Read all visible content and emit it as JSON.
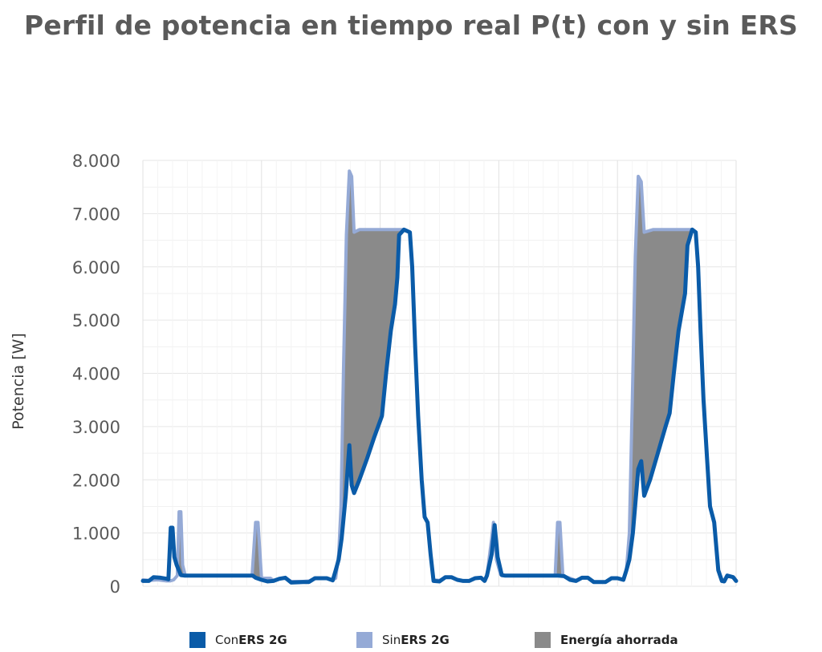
{
  "chart_data": {
    "type": "area",
    "title": "Perfil de potencia en tiempo real P(t) con y sin ERS",
    "ylabel": "Potencia [W]",
    "xlabel": "",
    "ylim": [
      0,
      8000
    ],
    "yticks": [
      "0",
      "1.000",
      "2.000",
      "3.000",
      "4.000",
      "5.000",
      "6.000",
      "7.000",
      "8.000"
    ],
    "grid": true,
    "legend_position": "bottom",
    "x_note": "time index 0-100 (no x tick labels shown)",
    "series": [
      {
        "name": "Con ERS 2G",
        "color": "#0a5ba8",
        "points": [
          [
            0,
            100
          ],
          [
            1,
            100
          ],
          [
            1.8,
            170
          ],
          [
            3,
            160
          ],
          [
            4,
            140
          ],
          [
            4.3,
            130
          ],
          [
            4.7,
            1100
          ],
          [
            5,
            1100
          ],
          [
            5.3,
            550
          ],
          [
            5.7,
            400
          ],
          [
            6.4,
            210
          ],
          [
            7,
            200
          ],
          [
            10,
            200
          ],
          [
            13,
            200
          ],
          [
            17,
            200
          ],
          [
            18.5,
            200
          ],
          [
            19,
            160
          ],
          [
            20,
            120
          ],
          [
            21,
            90
          ],
          [
            22,
            100
          ],
          [
            23,
            140
          ],
          [
            24,
            160
          ],
          [
            25,
            70
          ],
          [
            27,
            80
          ],
          [
            28,
            80
          ],
          [
            29,
            150
          ],
          [
            31,
            150
          ],
          [
            32,
            110
          ],
          [
            32.5,
            300
          ],
          [
            33,
            500
          ],
          [
            33.5,
            900
          ],
          [
            34.2,
            1700
          ],
          [
            34.8,
            2650
          ],
          [
            35.2,
            1900
          ],
          [
            35.6,
            1750
          ],
          [
            36.5,
            2000
          ],
          [
            37.8,
            2400
          ],
          [
            39,
            2800
          ],
          [
            40.3,
            3200
          ],
          [
            41,
            4000
          ],
          [
            41.8,
            4800
          ],
          [
            42.5,
            5300
          ],
          [
            42.9,
            5800
          ],
          [
            43.2,
            6600
          ],
          [
            44,
            6700
          ],
          [
            45,
            6650
          ],
          [
            45.4,
            6000
          ],
          [
            45.9,
            4500
          ],
          [
            46.4,
            3200
          ],
          [
            47,
            2000
          ],
          [
            47.5,
            1300
          ],
          [
            48,
            1200
          ],
          [
            48.5,
            600
          ],
          [
            49,
            100
          ],
          [
            50,
            90
          ],
          [
            51,
            170
          ],
          [
            52,
            170
          ],
          [
            53,
            120
          ],
          [
            54,
            100
          ],
          [
            55,
            100
          ],
          [
            56,
            150
          ],
          [
            57,
            160
          ],
          [
            57.6,
            100
          ],
          [
            58,
            200
          ],
          [
            58.8,
            600
          ],
          [
            59.3,
            1150
          ],
          [
            59.8,
            550
          ],
          [
            60.5,
            210
          ],
          [
            61,
            200
          ],
          [
            65,
            200
          ],
          [
            70,
            200
          ],
          [
            71,
            190
          ],
          [
            72,
            120
          ],
          [
            73,
            100
          ],
          [
            74,
            160
          ],
          [
            75,
            160
          ],
          [
            76,
            80
          ],
          [
            78,
            80
          ],
          [
            79,
            150
          ],
          [
            80,
            150
          ],
          [
            81,
            120
          ],
          [
            81.5,
            300
          ],
          [
            82,
            500
          ],
          [
            82.6,
            1000
          ],
          [
            83.5,
            2200
          ],
          [
            84,
            2350
          ],
          [
            84.5,
            1700
          ],
          [
            85.5,
            2000
          ],
          [
            86.8,
            2500
          ],
          [
            88.1,
            3000
          ],
          [
            88.8,
            3250
          ],
          [
            89.5,
            4000
          ],
          [
            90.3,
            4800
          ],
          [
            91.4,
            5500
          ],
          [
            91.8,
            6400
          ],
          [
            92.6,
            6700
          ],
          [
            93.2,
            6650
          ],
          [
            93.6,
            6000
          ],
          [
            94,
            4800
          ],
          [
            94.5,
            3500
          ],
          [
            95.1,
            2400
          ],
          [
            95.6,
            1500
          ],
          [
            96.3,
            1200
          ],
          [
            97,
            300
          ],
          [
            97.6,
            100
          ],
          [
            98,
            90
          ],
          [
            98.5,
            200
          ],
          [
            99.5,
            170
          ],
          [
            100,
            100
          ]
        ]
      },
      {
        "name": "Sin ERS 2G",
        "color": "#95aad6",
        "points": [
          [
            0,
            120
          ],
          [
            1,
            110
          ],
          [
            2.5,
            120
          ],
          [
            4,
            100
          ],
          [
            4.6,
            100
          ],
          [
            5.2,
            120
          ],
          [
            5.8,
            200
          ],
          [
            6.1,
            1400
          ],
          [
            6.4,
            1400
          ],
          [
            6.7,
            400
          ],
          [
            7.1,
            220
          ],
          [
            7.5,
            200
          ],
          [
            10,
            200
          ],
          [
            15,
            200
          ],
          [
            18,
            200
          ],
          [
            18.4,
            200
          ],
          [
            19,
            1200
          ],
          [
            19.4,
            1200
          ],
          [
            20,
            150
          ],
          [
            21.5,
            150
          ],
          [
            22,
            110
          ],
          [
            23,
            140
          ],
          [
            24,
            160
          ],
          [
            25,
            90
          ],
          [
            27,
            90
          ],
          [
            28,
            100
          ],
          [
            29,
            150
          ],
          [
            31,
            150
          ],
          [
            32,
            120
          ],
          [
            32.5,
            150
          ],
          [
            33,
            600
          ],
          [
            33.4,
            1500
          ],
          [
            33.8,
            4000
          ],
          [
            34.3,
            6600
          ],
          [
            34.8,
            7800
          ],
          [
            35.2,
            7700
          ],
          [
            35.6,
            6650
          ],
          [
            36.5,
            6700
          ],
          [
            40,
            6700
          ],
          [
            44,
            6700
          ],
          [
            45,
            6650
          ],
          [
            45.4,
            6000
          ],
          [
            45.9,
            4500
          ],
          [
            46.4,
            3200
          ],
          [
            47,
            2000
          ],
          [
            47.5,
            1300
          ],
          [
            48,
            1200
          ],
          [
            48.5,
            600
          ],
          [
            49,
            120
          ],
          [
            50,
            110
          ],
          [
            51,
            170
          ],
          [
            52,
            170
          ],
          [
            53,
            120
          ],
          [
            54,
            100
          ],
          [
            55,
            100
          ],
          [
            56,
            150
          ],
          [
            57,
            160
          ],
          [
            57.6,
            100
          ],
          [
            58,
            200
          ],
          [
            58.8,
            900
          ],
          [
            59.1,
            1200
          ],
          [
            59.6,
            500
          ],
          [
            60.3,
            220
          ],
          [
            61,
            200
          ],
          [
            65,
            200
          ],
          [
            69.5,
            200
          ],
          [
            69.9,
            1200
          ],
          [
            70.3,
            1200
          ],
          [
            70.8,
            200
          ],
          [
            72,
            150
          ],
          [
            73,
            110
          ],
          [
            74,
            160
          ],
          [
            75,
            160
          ],
          [
            76,
            80
          ],
          [
            78,
            80
          ],
          [
            79,
            150
          ],
          [
            80,
            150
          ],
          [
            81,
            130
          ],
          [
            81.5,
            300
          ],
          [
            82,
            1000
          ],
          [
            82.5,
            3500
          ],
          [
            83,
            6200
          ],
          [
            83.5,
            7700
          ],
          [
            84,
            7600
          ],
          [
            84.5,
            6650
          ],
          [
            86,
            6700
          ],
          [
            90,
            6700
          ],
          [
            92.6,
            6700
          ],
          [
            93.2,
            6650
          ],
          [
            93.6,
            6000
          ],
          [
            94,
            4800
          ],
          [
            94.5,
            3500
          ],
          [
            95.1,
            2400
          ],
          [
            95.6,
            1500
          ],
          [
            96.3,
            1200
          ],
          [
            97,
            300
          ],
          [
            97.6,
            120
          ],
          [
            98,
            100
          ],
          [
            98.5,
            200
          ],
          [
            99.5,
            170
          ],
          [
            100,
            110
          ]
        ]
      }
    ],
    "fill_between": {
      "name": "Energía ahorrada",
      "color": "#8a8a8a",
      "description": "area between Sin ERS 2G (upper) and Con ERS 2G (lower)"
    }
  },
  "legend": {
    "items": [
      {
        "prefix": "Con ",
        "bold": "ERS 2G",
        "color": "#0a5ba8"
      },
      {
        "prefix": "Sin ",
        "bold": "ERS 2G",
        "color": "#95aad6"
      },
      {
        "prefix": "",
        "bold": "Energía ahorrada",
        "color": "#8a8a8a"
      }
    ]
  }
}
